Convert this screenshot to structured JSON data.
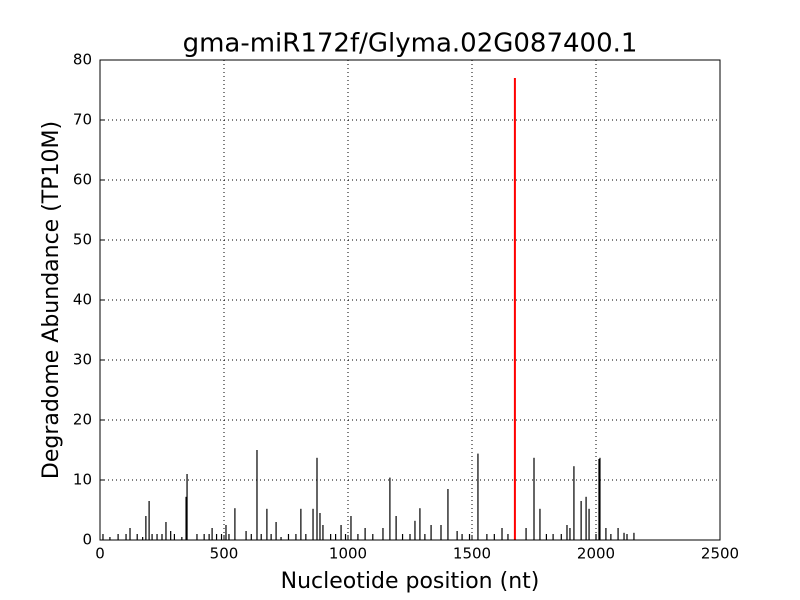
{
  "chart_data": {
    "type": "bar",
    "title": "gma-miR172f/Glyma.02G087400.1",
    "xlabel": "Nucleotide position (nt)",
    "ylabel": "Degradome Abundance (TP10M)",
    "xlim": [
      0,
      2500
    ],
    "ylim": [
      0,
      80
    ],
    "xticks": [
      0,
      500,
      1000,
      1500,
      2000,
      2500
    ],
    "yticks": [
      0,
      10,
      20,
      30,
      40,
      50,
      60,
      70,
      80
    ],
    "grid": true,
    "series": [
      {
        "color": "#000000",
        "x": [
          12,
          40,
          73,
          105,
          121,
          150,
          172,
          185,
          198,
          210,
          230,
          250,
          266,
          285,
          300,
          330,
          347,
          351,
          391,
          420,
          440,
          452,
          470,
          490,
          508,
          520,
          544,
          589,
          610,
          633,
          650,
          673,
          690,
          710,
          730,
          760,
          790,
          810,
          830,
          859,
          875,
          887,
          899,
          930,
          950,
          972,
          990,
          1012,
          1040,
          1069,
          1100,
          1141,
          1169,
          1194,
          1220,
          1250,
          1270,
          1290,
          1310,
          1335,
          1375,
          1403,
          1440,
          1460,
          1490,
          1524,
          1560,
          1590,
          1621,
          1645,
          1718,
          1750,
          1774,
          1800,
          1827,
          1860,
          1883,
          1895,
          1911,
          1940,
          1960,
          1972,
          2000,
          2012,
          2016,
          2040,
          2060,
          2089,
          2113,
          2125,
          2153
        ],
        "values": [
          1,
          0.5,
          1,
          1,
          2,
          1,
          0.5,
          4,
          6.5,
          1,
          1,
          1,
          3,
          1.5,
          1,
          0.5,
          7.2,
          11,
          1,
          1,
          1,
          2,
          1,
          1,
          2.5,
          1,
          5.3,
          1.5,
          1,
          15,
          1,
          5.2,
          1,
          3,
          0.5,
          1,
          1,
          5.2,
          1,
          5.2,
          13.7,
          4.5,
          2.5,
          1,
          1,
          2.5,
          1,
          4,
          1,
          2,
          1,
          2,
          10.4,
          4,
          1,
          1,
          3.2,
          5.3,
          1,
          2.5,
          2.5,
          8.5,
          1.5,
          1,
          1,
          14.4,
          1,
          1,
          2,
          1,
          2,
          13.7,
          5.2,
          1,
          1,
          1,
          2.5,
          2,
          12.3,
          6.5,
          7.2,
          5.2,
          1,
          13.5,
          13.7,
          2,
          1,
          2,
          1.2,
          1,
          1.2
        ]
      },
      {
        "color": "#ff0000",
        "x": [
          1673
        ],
        "values": [
          77
        ]
      }
    ]
  }
}
